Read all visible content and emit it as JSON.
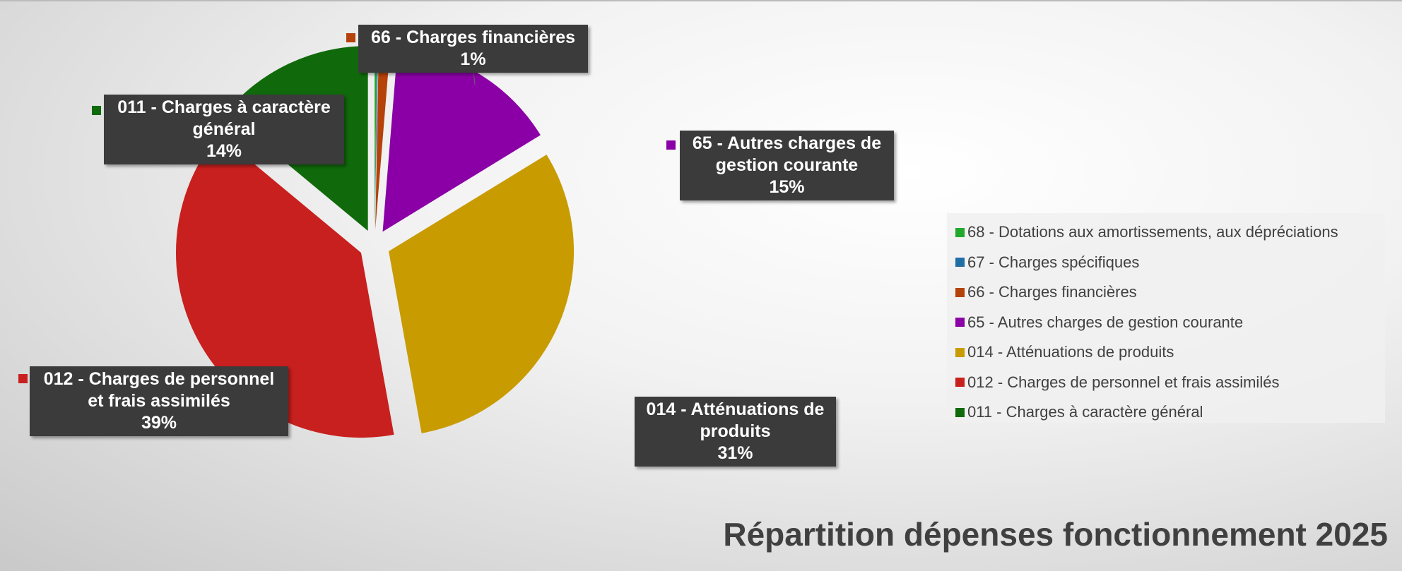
{
  "chart_data": {
    "type": "pie",
    "title": "Répartition dépenses fonctionnement 2025",
    "categories": [
      "68 - Dotations aux amortissements, aux dépréciations",
      "67 - Charges spécifiques",
      "66 - Charges financières",
      "65 - Autres charges de gestion courante",
      "014 - Atténuations de produits",
      "012 - Charges de personnel et frais assimilés",
      "011 - Charges à caractère général"
    ],
    "values": [
      0.2,
      0.1,
      1,
      15,
      31,
      39,
      14
    ],
    "value_labels": [
      null,
      null,
      "1%",
      "15%",
      "31%",
      "39%",
      "14%"
    ],
    "colors": [
      "#22a82a",
      "#1f6fa5",
      "#b5420a",
      "#8a00a6",
      "#c89b00",
      "#c8201e",
      "#106a0b"
    ],
    "legend": "right"
  }
}
